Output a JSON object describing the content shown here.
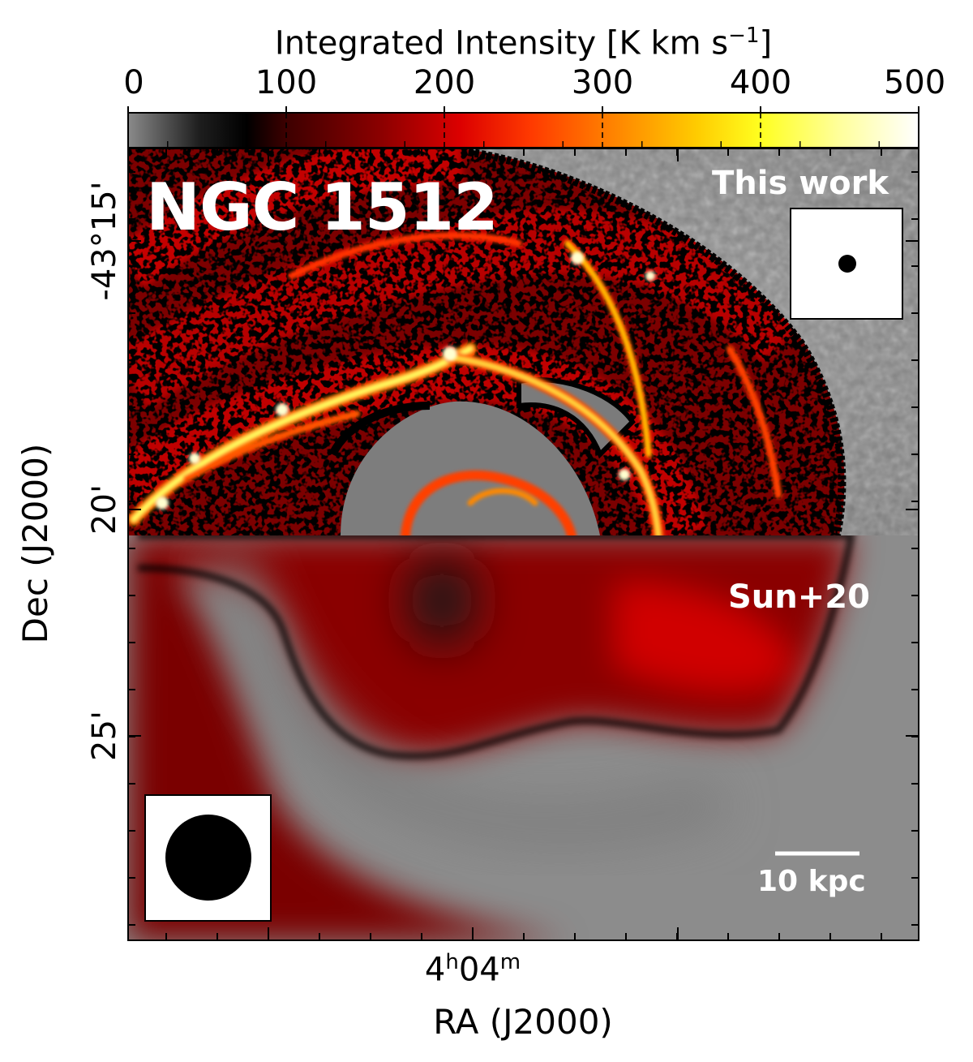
{
  "colorbar": {
    "label": "Integrated Intensity [K km s",
    "label_sup": "−1",
    "label_close": "]",
    "ticks": [
      {
        "value": 0,
        "label": "0"
      },
      {
        "value": 100,
        "label": "100"
      },
      {
        "value": 200,
        "label": "200"
      },
      {
        "value": 300,
        "label": "300"
      },
      {
        "value": 400,
        "label": "400"
      },
      {
        "value": 500,
        "label": "500"
      }
    ],
    "range": [
      0,
      500
    ],
    "colormap": [
      {
        "value": 0,
        "color": "#8a8a8a"
      },
      {
        "value": 45,
        "color": "#1e1e1e"
      },
      {
        "value": 75,
        "color": "#000000"
      },
      {
        "value": 100,
        "color": "#3d0000"
      },
      {
        "value": 160,
        "color": "#8c0000"
      },
      {
        "value": 210,
        "color": "#dc0000"
      },
      {
        "value": 255,
        "color": "#ff3a00"
      },
      {
        "value": 300,
        "color": "#ff7a00"
      },
      {
        "value": 360,
        "color": "#ffcc00"
      },
      {
        "value": 400,
        "color": "#ffff20"
      },
      {
        "value": 450,
        "color": "#ffff9c"
      },
      {
        "value": 500,
        "color": "#ffffff"
      }
    ]
  },
  "axes": {
    "ylabel": "Dec (J2000)",
    "yticks": [
      "-43°15'",
      "20'",
      "25'"
    ],
    "xlabel": "RA (J2000)",
    "xtick": {
      "h": "4",
      "h_sup": "h",
      "m": "04",
      "m_sup": "m"
    }
  },
  "panels": {
    "galaxy_name": "NGC 1512",
    "top": {
      "label": "This work"
    },
    "bottom": {
      "label": "Sun+20"
    },
    "scale_bar": {
      "label": "10 kpc"
    }
  },
  "chart_data": {
    "type": "heatmap",
    "title": "NGC 1512",
    "colorbar_label": "Integrated Intensity [K km s^-1]",
    "colorbar_range": [
      0,
      500
    ],
    "colorbar_ticks": [
      0,
      100,
      200,
      300,
      400,
      500
    ],
    "xlabel": "RA (J2000)",
    "ylabel": "Dec (J2000)",
    "x_tick_labels": [
      "4h04m"
    ],
    "y_tick_labels": [
      "-43°15'",
      "20'",
      "25'"
    ],
    "panels": [
      {
        "name": "This work",
        "region": "top",
        "beam": "small"
      },
      {
        "name": "Sun+20",
        "region": "bottom",
        "beam": "large"
      }
    ],
    "scale_bar": "10 kpc"
  }
}
